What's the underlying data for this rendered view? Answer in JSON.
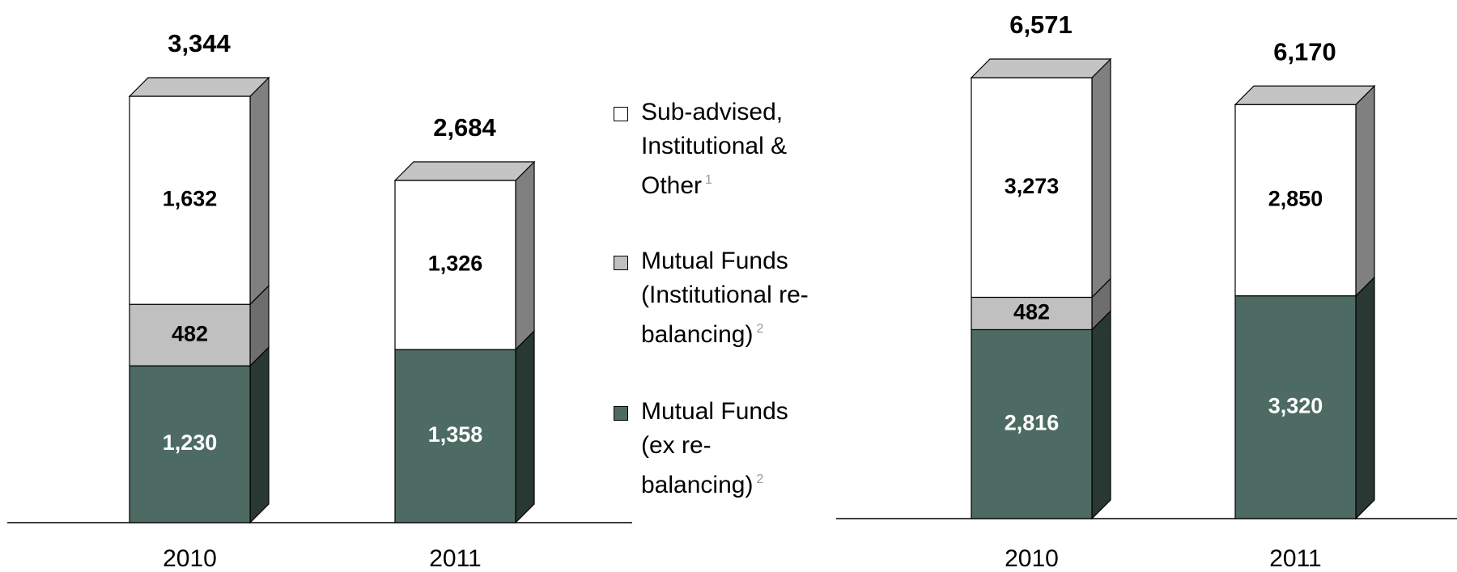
{
  "chart_data": [
    {
      "type": "bar",
      "stacked": true,
      "categories": [
        "2010",
        "2011"
      ],
      "series": [
        {
          "name": "Mutual Funds (ex re-balancing)",
          "note": "2",
          "color": "#4d6b63",
          "side": "#2a3833",
          "label_color": "#ffffff",
          "values": [
            1230,
            1358
          ],
          "value_labels": [
            "1,230",
            "1,358"
          ]
        },
        {
          "name": "Mutual Funds (Institutional re-balancing)",
          "note": "2",
          "color": "#c0c0c0",
          "side": "#6e6e6e",
          "label_color": "#000000",
          "values": [
            482,
            null
          ],
          "value_labels": [
            "482",
            null
          ]
        },
        {
          "name": "Sub-advised, Institutional & Other",
          "note": "1",
          "color": "#ffffff",
          "side": "#808080",
          "label_color": "#000000",
          "values": [
            1632,
            1326
          ],
          "value_labels": [
            "1,632",
            "1,326"
          ]
        }
      ],
      "totals": [
        3344,
        2684
      ],
      "total_labels": [
        "3,344",
        "2,684"
      ]
    },
    {
      "type": "bar",
      "stacked": true,
      "categories": [
        "2010",
        "2011"
      ],
      "series": [
        {
          "color": "#4d6b63",
          "side": "#2a3833",
          "label_color": "#ffffff",
          "values": [
            2816,
            3320
          ],
          "value_labels": [
            "2,816",
            "3,320"
          ]
        },
        {
          "color": "#c0c0c0",
          "side": "#6e6e6e",
          "label_color": "#000000",
          "values": [
            482,
            null
          ],
          "value_labels": [
            "482",
            null
          ]
        },
        {
          "color": "#ffffff",
          "side": "#808080",
          "label_color": "#000000",
          "values": [
            3273,
            2850
          ],
          "value_labels": [
            "3,273",
            "2,850"
          ]
        }
      ],
      "totals": [
        6571,
        6170
      ],
      "total_labels": [
        "6,571",
        "6,170"
      ]
    }
  ]
}
